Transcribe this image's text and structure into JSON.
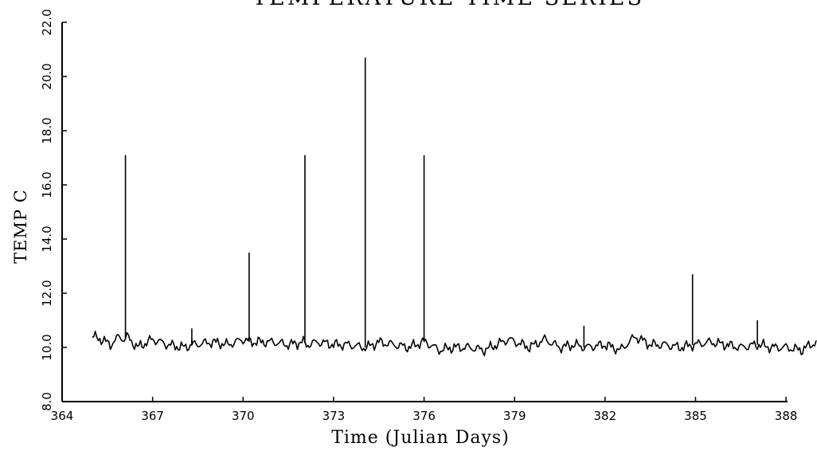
{
  "chart_data": {
    "type": "line",
    "title": "TEMPERATURE TIME SERIES",
    "xlabel": "Time (Julian Days)",
    "ylabel": "TEMP C",
    "xlim": [
      364,
      389
    ],
    "ylim": [
      8.0,
      22.0
    ],
    "x_ticks": [
      364,
      367,
      370,
      373,
      376,
      379,
      382,
      385,
      388
    ],
    "x_tick_labels": [
      "364",
      "367",
      "370",
      "373",
      "376",
      "379",
      "382",
      "385",
      "388"
    ],
    "y_ticks": [
      8.0,
      10.0,
      12.0,
      14.0,
      16.0,
      18.0,
      20.0,
      22.0
    ],
    "y_tick_labels": [
      "8.0",
      "10.0",
      "12.0",
      "14.0",
      "16.0",
      "18.0",
      "20.0",
      "22.0"
    ],
    "grid": false,
    "series": [
      {
        "x_range": [
          365.0,
          389.0
        ],
        "baseline": 10.1,
        "values": [
          [
            365.0,
            10.4
          ],
          [
            365.3,
            10.3
          ],
          [
            365.6,
            10.1
          ],
          [
            365.9,
            10.4
          ],
          [
            366.05,
            10.3
          ],
          [
            366.1,
            17.1
          ],
          [
            366.15,
            10.4
          ],
          [
            366.5,
            10.0
          ],
          [
            367.0,
            10.3
          ],
          [
            367.5,
            10.1
          ],
          [
            368.0,
            10.0
          ],
          [
            368.3,
            10.3
          ],
          [
            368.3,
            10.7
          ],
          [
            368.35,
            10.1
          ],
          [
            369.0,
            10.2
          ],
          [
            369.5,
            10.1
          ],
          [
            370.0,
            10.3
          ],
          [
            370.2,
            10.2
          ],
          [
            370.2,
            13.5
          ],
          [
            370.25,
            10.2
          ],
          [
            371.0,
            10.2
          ],
          [
            371.5,
            10.1
          ],
          [
            372.0,
            10.2
          ],
          [
            372.05,
            17.1
          ],
          [
            372.1,
            10.1
          ],
          [
            372.5,
            10.2
          ],
          [
            373.0,
            10.1
          ],
          [
            373.5,
            10.1
          ],
          [
            374.0,
            10.0
          ],
          [
            374.05,
            20.7
          ],
          [
            374.1,
            10.0
          ],
          [
            374.5,
            10.2
          ],
          [
            375.0,
            10.1
          ],
          [
            375.5,
            10.0
          ],
          [
            375.95,
            10.2
          ],
          [
            376.0,
            17.1
          ],
          [
            376.05,
            10.2
          ],
          [
            376.5,
            9.9
          ],
          [
            377.0,
            10.0
          ],
          [
            377.5,
            10.0
          ],
          [
            378.0,
            9.9
          ],
          [
            378.8,
            10.3
          ],
          [
            379.5,
            10.0
          ],
          [
            380.0,
            10.3
          ],
          [
            380.5,
            10.0
          ],
          [
            381.0,
            10.1
          ],
          [
            381.3,
            10.0
          ],
          [
            381.3,
            10.8
          ],
          [
            381.35,
            10.0
          ],
          [
            382.0,
            10.1
          ],
          [
            382.5,
            9.9
          ],
          [
            383.0,
            10.4
          ],
          [
            383.5,
            10.1
          ],
          [
            384.0,
            10.1
          ],
          [
            384.5,
            10.0
          ],
          [
            384.9,
            10.1
          ],
          [
            384.9,
            12.7
          ],
          [
            384.95,
            10.1
          ],
          [
            385.5,
            10.2
          ],
          [
            386.0,
            10.1
          ],
          [
            386.5,
            10.0
          ],
          [
            387.0,
            10.1
          ],
          [
            387.05,
            11.0
          ],
          [
            387.1,
            10.1
          ],
          [
            387.5,
            10.0
          ],
          [
            388.0,
            10.0
          ],
          [
            388.5,
            9.9
          ],
          [
            389.0,
            10.2
          ]
        ]
      }
    ]
  }
}
